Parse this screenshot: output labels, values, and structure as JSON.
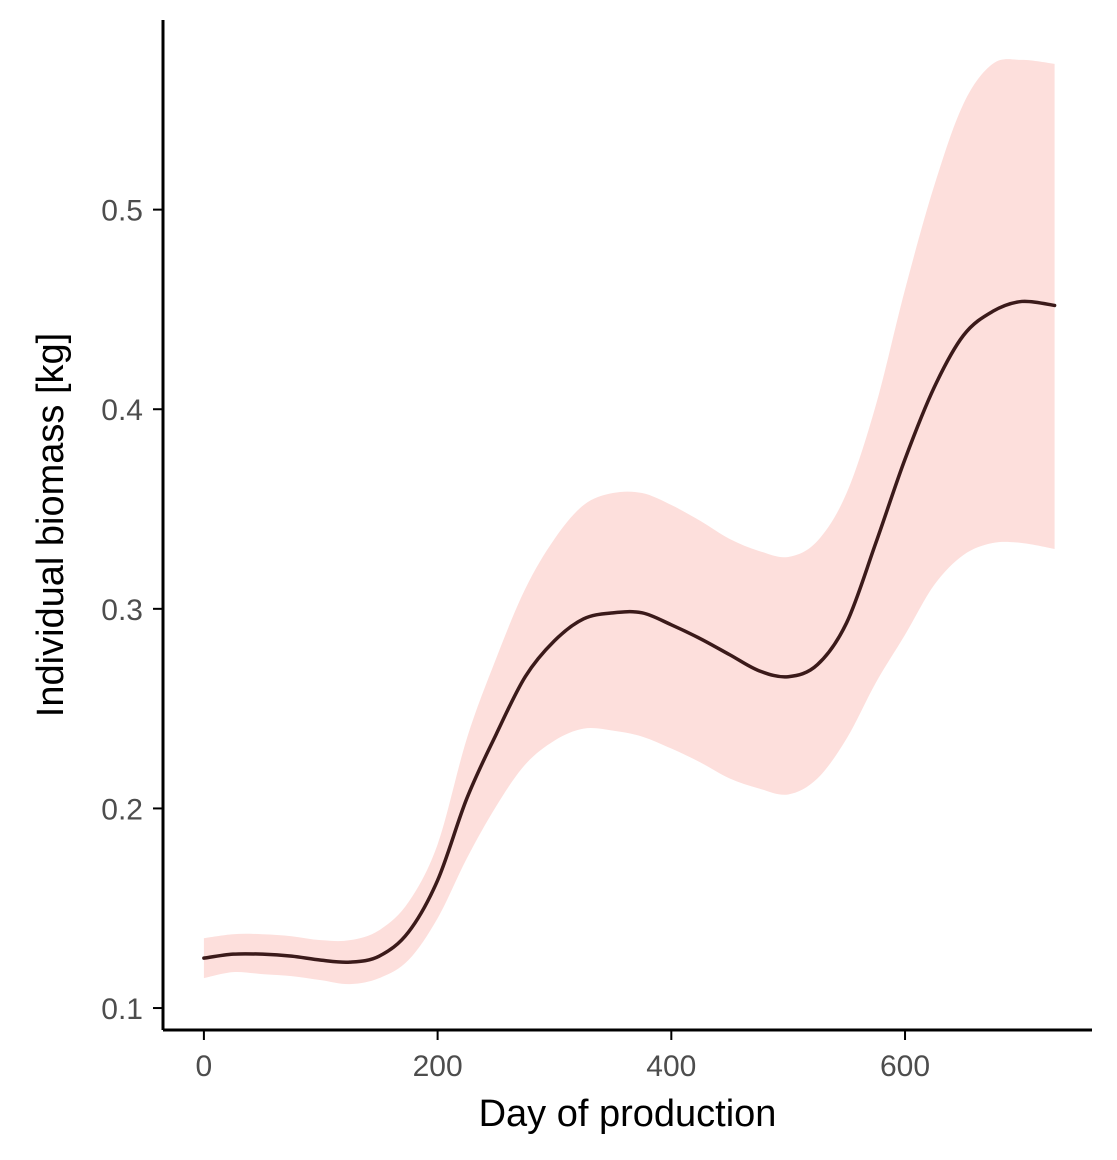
{
  "chart_data": {
    "type": "line",
    "title": "",
    "xlabel": "Day of production",
    "ylabel": "Individual biomass [kg]",
    "xlim": [
      -35,
      760
    ],
    "ylim": [
      0.089,
      0.595
    ],
    "x_ticks": [
      0,
      200,
      400,
      600
    ],
    "x_tick_labels": [
      "0",
      "200",
      "400",
      "600"
    ],
    "y_ticks": [
      0.1,
      0.2,
      0.3,
      0.4,
      0.5
    ],
    "y_tick_labels": [
      "0.1",
      "0.2",
      "0.3",
      "0.4",
      "0.5"
    ],
    "grid": false,
    "legend": "none",
    "colors": {
      "line": "#3b1a1a",
      "band": "#fddfdc",
      "axis": "#000000"
    },
    "series": [
      {
        "x": [
          0,
          25,
          50,
          75,
          100,
          125,
          150,
          175,
          200,
          225,
          250,
          275,
          300,
          325,
          350,
          375,
          400,
          425,
          450,
          475,
          500,
          525,
          550,
          575,
          600,
          625,
          650,
          675,
          700,
          728
        ],
        "y": [
          0.125,
          0.127,
          0.127,
          0.126,
          0.124,
          0.123,
          0.126,
          0.138,
          0.164,
          0.205,
          0.237,
          0.266,
          0.284,
          0.295,
          0.298,
          0.298,
          0.292,
          0.285,
          0.277,
          0.269,
          0.266,
          0.272,
          0.293,
          0.333,
          0.375,
          0.411,
          0.437,
          0.449,
          0.454,
          0.452
        ],
        "lower": [
          0.115,
          0.118,
          0.117,
          0.116,
          0.114,
          0.112,
          0.115,
          0.124,
          0.145,
          0.175,
          0.201,
          0.222,
          0.234,
          0.24,
          0.239,
          0.236,
          0.23,
          0.223,
          0.215,
          0.21,
          0.207,
          0.215,
          0.235,
          0.263,
          0.287,
          0.312,
          0.327,
          0.333,
          0.333,
          0.33
        ],
        "upper": [
          0.135,
          0.137,
          0.137,
          0.136,
          0.134,
          0.134,
          0.139,
          0.153,
          0.182,
          0.235,
          0.275,
          0.31,
          0.335,
          0.352,
          0.358,
          0.358,
          0.352,
          0.344,
          0.335,
          0.329,
          0.326,
          0.334,
          0.358,
          0.402,
          0.46,
          0.512,
          0.553,
          0.573,
          0.575,
          0.573
        ]
      }
    ]
  }
}
